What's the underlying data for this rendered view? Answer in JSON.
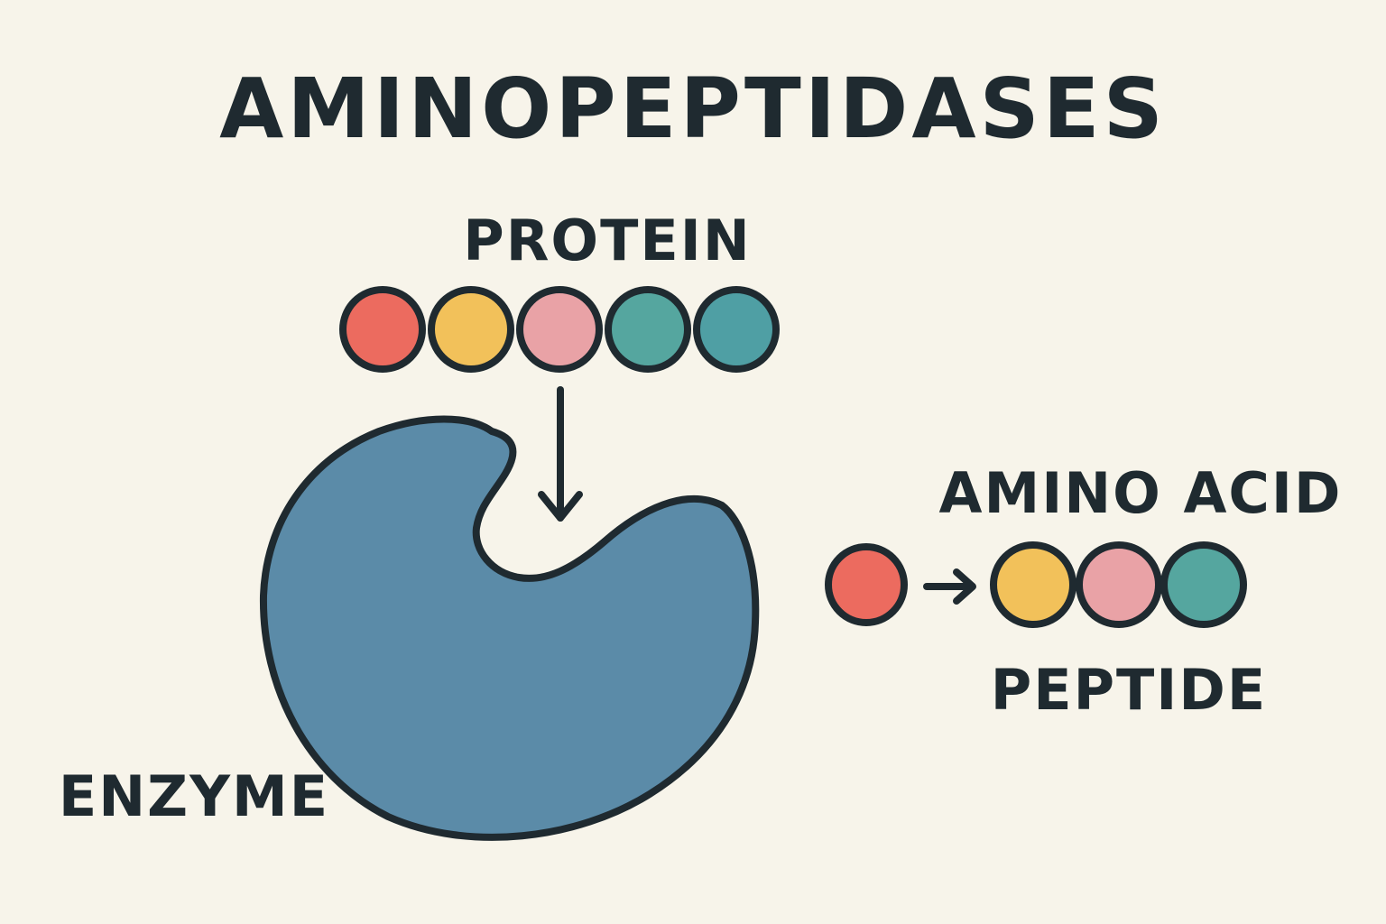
{
  "title": "AMINOPEPTIDASES",
  "labels": {
    "protein": "PROTEIN",
    "enzyme": "ENZYME",
    "amino_acid": "AMINO ACID",
    "peptide": "PEPTIDE"
  },
  "colors": {
    "background": "#f7f4ea",
    "outline": "#1f2a30",
    "enzyme": "#5b8ba8",
    "red": "#ec6b5f",
    "yellow": "#f2c15a",
    "pink": "#e9a2a6",
    "teal": "#55a69f",
    "teal_dark": "#4f9fa4"
  },
  "protein_beads": [
    "red",
    "yellow",
    "pink",
    "teal",
    "teal_dark"
  ],
  "released_amino_acid": "red",
  "peptide_beads": [
    "yellow",
    "pink",
    "teal"
  ]
}
